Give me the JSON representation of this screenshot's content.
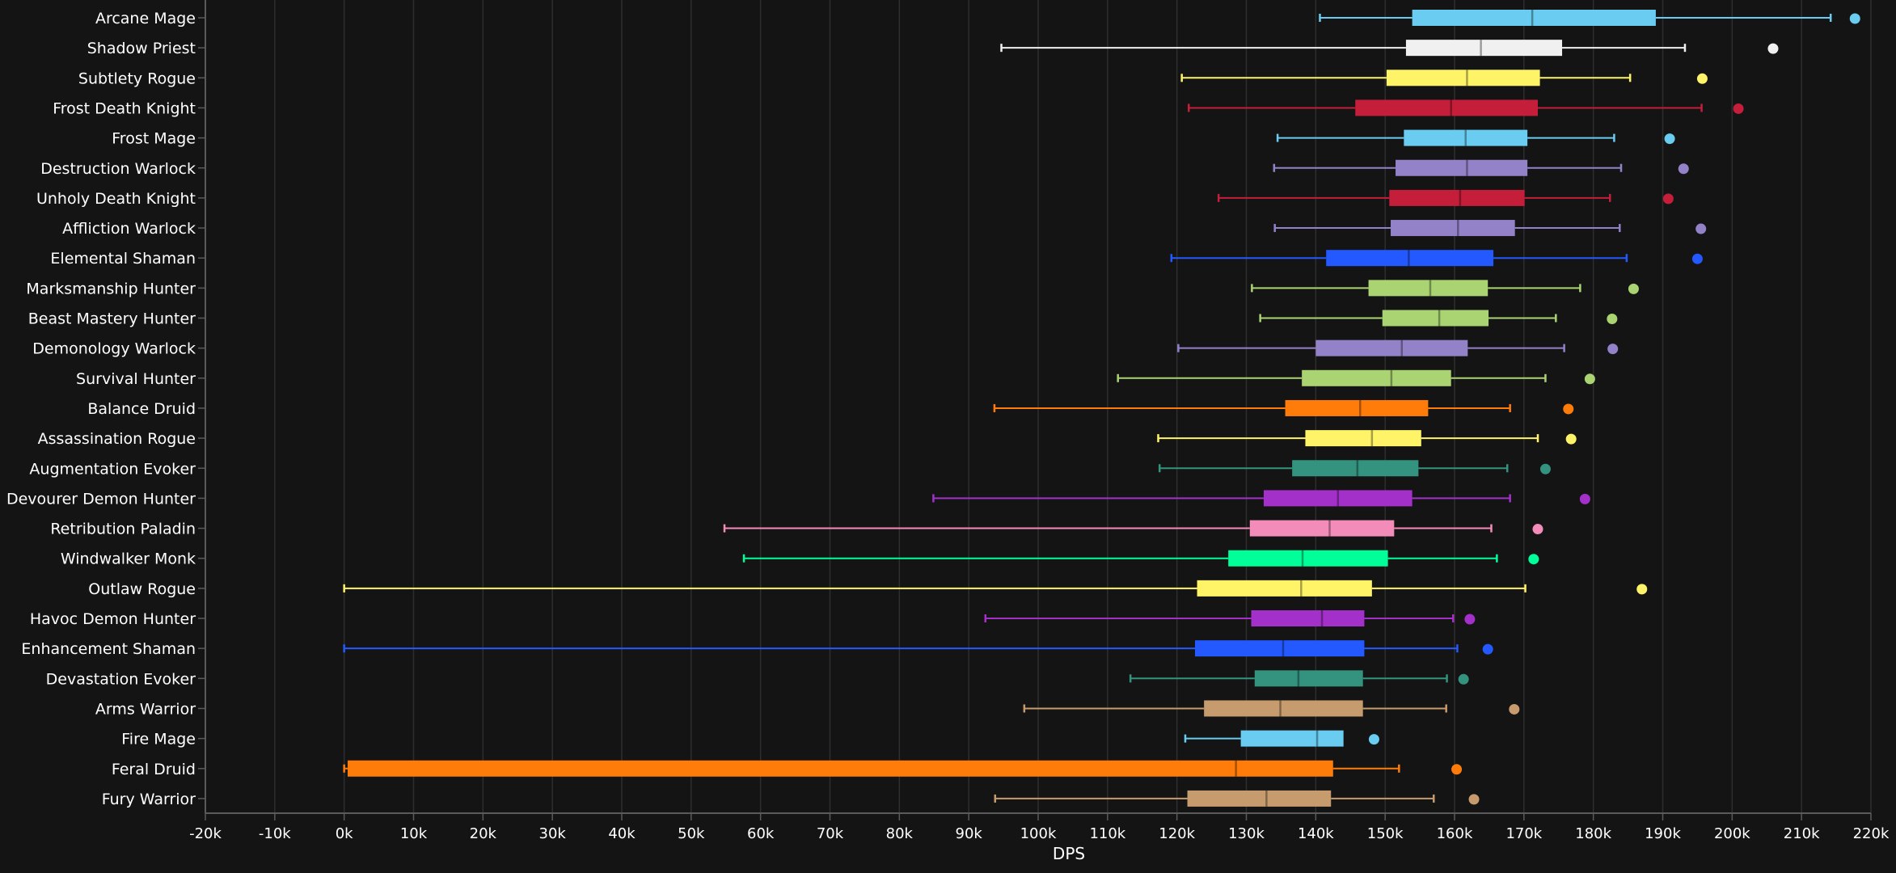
{
  "chart_data": {
    "type": "boxplot",
    "orientation": "horizontal",
    "xlabel": "DPS",
    "xlim": [
      -20000,
      220000
    ],
    "x_ticks": [
      -20000,
      -10000,
      0,
      10000,
      20000,
      30000,
      40000,
      50000,
      60000,
      70000,
      80000,
      90000,
      100000,
      110000,
      120000,
      130000,
      140000,
      150000,
      160000,
      170000,
      180000,
      190000,
      200000,
      210000,
      220000
    ],
    "x_tick_labels": [
      "-20k",
      "-10k",
      "0k",
      "10k",
      "20k",
      "30k",
      "40k",
      "50k",
      "60k",
      "70k",
      "80k",
      "90k",
      "100k",
      "110k",
      "120k",
      "130k",
      "140k",
      "150k",
      "160k",
      "170k",
      "180k",
      "190k",
      "200k",
      "210k",
      "220k"
    ],
    "grid": true,
    "legend": "none",
    "series": [
      {
        "name": "Arcane Mage",
        "color": "#69ccf0",
        "min": 140600,
        "q1": 153900,
        "median": 171200,
        "q3": 189000,
        "max": 214200,
        "outlier": 217700
      },
      {
        "name": "Shadow Priest",
        "color": "#f0f0f0",
        "min": 94700,
        "q1": 153000,
        "median": 163800,
        "q3": 175500,
        "max": 193200,
        "outlier": 205900
      },
      {
        "name": "Subtlety Rogue",
        "color": "#fff468",
        "min": 120700,
        "q1": 150200,
        "median": 161800,
        "q3": 172300,
        "max": 185300,
        "outlier": 195700
      },
      {
        "name": "Frost Death Knight",
        "color": "#c41e3a",
        "min": 121700,
        "q1": 145700,
        "median": 159500,
        "q3": 172000,
        "max": 195600,
        "outlier": 200900
      },
      {
        "name": "Frost Mage",
        "color": "#69ccf0",
        "min": 134500,
        "q1": 152700,
        "median": 161600,
        "q3": 170500,
        "max": 183000,
        "outlier": 191000
      },
      {
        "name": "Destruction Warlock",
        "color": "#9482c9",
        "min": 134000,
        "q1": 151500,
        "median": 161800,
        "q3": 170500,
        "max": 184000,
        "outlier": 193000
      },
      {
        "name": "Unholy Death Knight",
        "color": "#c41e3a",
        "min": 126000,
        "q1": 150600,
        "median": 160800,
        "q3": 170100,
        "max": 182400,
        "outlier": 190800
      },
      {
        "name": "Affliction Warlock",
        "color": "#9482c9",
        "min": 134100,
        "q1": 150800,
        "median": 160500,
        "q3": 168700,
        "max": 183800,
        "outlier": 195500
      },
      {
        "name": "Elemental Shaman",
        "color": "#2459ff",
        "min": 119200,
        "q1": 141500,
        "median": 153400,
        "q3": 165600,
        "max": 184800,
        "outlier": 195000
      },
      {
        "name": "Marksmanship Hunter",
        "color": "#aad372",
        "min": 130800,
        "q1": 147600,
        "median": 156500,
        "q3": 164800,
        "max": 178100,
        "outlier": 185800
      },
      {
        "name": "Beast Mastery Hunter",
        "color": "#aad372",
        "min": 132000,
        "q1": 149600,
        "median": 157800,
        "q3": 164900,
        "max": 174600,
        "outlier": 182700
      },
      {
        "name": "Demonology Warlock",
        "color": "#9482c9",
        "min": 120200,
        "q1": 140000,
        "median": 152400,
        "q3": 161900,
        "max": 175800,
        "outlier": 182800
      },
      {
        "name": "Survival Hunter",
        "color": "#aad372",
        "min": 111500,
        "q1": 138000,
        "median": 150900,
        "q3": 159500,
        "max": 173100,
        "outlier": 179500
      },
      {
        "name": "Balance Druid",
        "color": "#ff7c0a",
        "min": 93700,
        "q1": 135600,
        "median": 146400,
        "q3": 156200,
        "max": 168000,
        "outlier": 176400
      },
      {
        "name": "Assassination Rogue",
        "color": "#fff468",
        "min": 117300,
        "q1": 138500,
        "median": 148100,
        "q3": 155200,
        "max": 172000,
        "outlier": 176800
      },
      {
        "name": "Augmentation Evoker",
        "color": "#33937f",
        "min": 117500,
        "q1": 136600,
        "median": 146000,
        "q3": 154800,
        "max": 167600,
        "outlier": 173100
      },
      {
        "name": "Devourer Demon Hunter",
        "color": "#a330c9",
        "min": 84900,
        "q1": 132500,
        "median": 143200,
        "q3": 153900,
        "max": 168000,
        "outlier": 178800
      },
      {
        "name": "Retribution Paladin",
        "color": "#f48cba",
        "min": 54800,
        "q1": 130500,
        "median": 142000,
        "q3": 151300,
        "max": 165300,
        "outlier": 172000
      },
      {
        "name": "Windwalker Monk",
        "color": "#00ff98",
        "min": 57600,
        "q1": 127400,
        "median": 138100,
        "q3": 150400,
        "max": 166100,
        "outlier": 171400
      },
      {
        "name": "Outlaw Rogue",
        "color": "#fff468",
        "min": 0,
        "q1": 122900,
        "median": 137900,
        "q3": 148100,
        "max": 170200,
        "outlier": 187000
      },
      {
        "name": "Havoc Demon Hunter",
        "color": "#a330c9",
        "min": 92400,
        "q1": 130700,
        "median": 140900,
        "q3": 147000,
        "max": 159800,
        "outlier": 162200
      },
      {
        "name": "Enhancement Shaman",
        "color": "#2459ff",
        "min": 0,
        "q1": 122600,
        "median": 135300,
        "q3": 147000,
        "max": 160400,
        "outlier": 164800
      },
      {
        "name": "Devastation Evoker",
        "color": "#33937f",
        "min": 113300,
        "q1": 131200,
        "median": 137500,
        "q3": 146800,
        "max": 158900,
        "outlier": 161300
      },
      {
        "name": "Arms Warrior",
        "color": "#c69b6d",
        "min": 98000,
        "q1": 123900,
        "median": 134900,
        "q3": 146800,
        "max": 158800,
        "outlier": 168600
      },
      {
        "name": "Fire Mage",
        "color": "#69ccf0",
        "min": 121200,
        "q1": 129200,
        "median": 140200,
        "q3": 144000,
        "max": null,
        "outlier": 148400
      },
      {
        "name": "Feral Druid",
        "color": "#ff7c0a",
        "min": 0,
        "q1": 500,
        "median": 128500,
        "q3": 142500,
        "max": 152000,
        "outlier": 160300
      },
      {
        "name": "Fury Warrior",
        "color": "#c69b6d",
        "min": 93800,
        "q1": 121500,
        "median": 132900,
        "q3": 142200,
        "max": 157000,
        "outlier": 162800
      }
    ]
  }
}
